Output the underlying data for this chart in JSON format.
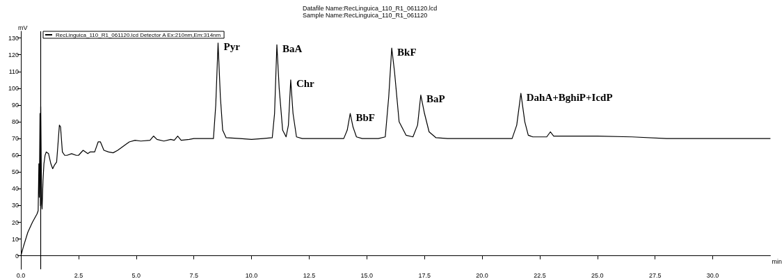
{
  "chart_data": {
    "type": "line",
    "title": "Datafile Name:RecLinguica_110_R1_061120.lcd",
    "subtitle": "Sample Name:RecLinguica_110_R1_061120",
    "xlabel": "min",
    "ylabel": "mV",
    "series": [
      {
        "name": "RecLinguica_110_R1_061120.lcd Detector A Ex:210nm,Em:314nm",
        "color": "#000000",
        "x": [
          0,
          0.1,
          0.3,
          0.5,
          0.7,
          0.75,
          0.78,
          0.8,
          0.83,
          0.85,
          0.86,
          0.88,
          0.9,
          0.92,
          0.96,
          1.0,
          1.05,
          1.1,
          1.2,
          1.3,
          1.38,
          1.45,
          1.55,
          1.6,
          1.67,
          1.72,
          1.8,
          1.9,
          2.0,
          2.2,
          2.4,
          2.5,
          2.7,
          2.9,
          3.0,
          3.2,
          3.35,
          3.45,
          3.6,
          3.8,
          4.0,
          4.2,
          4.5,
          4.7,
          4.95,
          5.2,
          5.6,
          5.75,
          5.9,
          6.2,
          6.5,
          6.65,
          6.8,
          6.95,
          7.3,
          7.5,
          8.0,
          8.35,
          8.45,
          8.55,
          8.65,
          8.75,
          8.9,
          9.5,
          10.0,
          10.5,
          10.9,
          11.0,
          11.1,
          11.2,
          11.35,
          11.5,
          11.6,
          11.7,
          11.8,
          11.95,
          12.2,
          13.0,
          14.0,
          14.15,
          14.28,
          14.4,
          14.55,
          14.8,
          15.5,
          15.8,
          15.95,
          16.08,
          16.2,
          16.4,
          16.7,
          17.0,
          17.2,
          17.34,
          17.5,
          17.7,
          18.0,
          18.5,
          21.3,
          21.5,
          21.68,
          21.85,
          22.0,
          22.2,
          22.8,
          22.96,
          23.1,
          25.0,
          26.5,
          28.0,
          32.5
        ],
        "values": [
          0,
          5,
          14,
          20,
          25,
          27,
          55,
          35,
          85,
          30,
          89,
          60,
          31,
          28,
          45,
          55,
          60,
          62,
          61,
          55,
          52,
          54,
          56,
          65,
          78,
          77,
          62,
          60,
          60,
          61,
          60,
          60,
          63,
          61,
          62,
          62,
          68,
          68,
          63,
          62,
          61.5,
          63,
          66,
          68,
          69,
          68.5,
          69,
          71.5,
          69.5,
          68.5,
          69.5,
          69,
          71.5,
          69,
          69.5,
          70,
          70,
          70,
          90,
          127,
          95,
          75,
          70.5,
          70,
          69.5,
          70,
          70.5,
          85,
          126,
          100,
          75,
          71,
          78,
          105,
          85,
          71,
          70,
          70,
          70,
          75,
          85,
          77,
          71,
          70,
          70,
          71,
          95,
          124,
          110,
          80,
          72,
          71,
          78,
          96,
          85,
          74,
          70.5,
          70,
          70,
          78,
          97,
          80,
          72,
          71,
          71,
          74,
          71.5,
          71.5,
          71,
          70,
          70
        ]
      }
    ],
    "xlim": [
      0,
      32.5
    ],
    "ylim": [
      -8,
      134
    ],
    "xticks": [
      {
        "value": 0,
        "label": "0.0"
      },
      2.5,
      {
        "value": 5,
        "label": "5.0"
      },
      7.5,
      {
        "value": 10,
        "label": "10.0"
      },
      12.5,
      {
        "value": 15,
        "label": "15.0"
      },
      17.5,
      {
        "value": 20,
        "label": "20.0"
      },
      22.5,
      {
        "value": 25,
        "label": "25.0"
      },
      27.5,
      {
        "value": 30,
        "label": "30.0"
      }
    ],
    "yticks": [
      0,
      10,
      20,
      30,
      40,
      50,
      60,
      70,
      80,
      90,
      100,
      110,
      120,
      130
    ],
    "ref_lines": [
      {
        "axis": "x",
        "value": 0.85,
        "color": "#000000"
      }
    ],
    "annotations": [
      {
        "text": "Pyr",
        "x": 8.55,
        "y": 127
      },
      {
        "text": "BaA",
        "x": 11.1,
        "y": 126
      },
      {
        "text": "Chr",
        "x": 11.7,
        "y": 105
      },
      {
        "text": "BbF",
        "x": 14.28,
        "y": 85
      },
      {
        "text": "BkF",
        "x": 16.08,
        "y": 124
      },
      {
        "text": "BaP",
        "x": 17.34,
        "y": 96
      },
      {
        "text": "DahA+BghiP+IcdP",
        "x": 21.68,
        "y": 97
      }
    ],
    "grid": false,
    "legend": "top left",
    "marker": "none",
    "line_style": "solid"
  }
}
